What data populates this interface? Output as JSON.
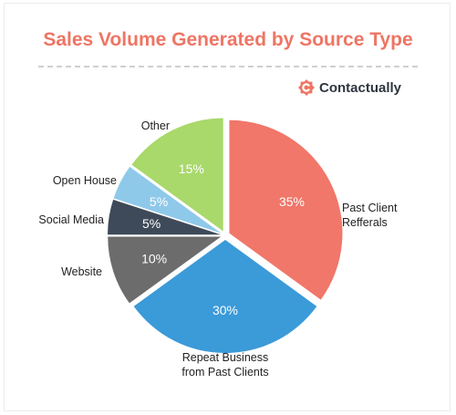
{
  "brand": {
    "name": "Contactually",
    "logo_icon": "contactually-logo-icon",
    "accent": "#ee7564"
  },
  "chart_data": {
    "type": "pie",
    "title": "Sales Volume Generated by Source Type",
    "slices": [
      {
        "label": "Past Client Refferals",
        "value": 35,
        "value_label": "35%",
        "color": "#f0776a"
      },
      {
        "label": "Repeat Business from Past Clients",
        "value": 30,
        "value_label": "30%",
        "color": "#3b9ad8"
      },
      {
        "label": "Website",
        "value": 10,
        "value_label": "10%",
        "color": "#6c6c6c"
      },
      {
        "label": "Social Media",
        "value": 5,
        "value_label": "5%",
        "color": "#3e4a59"
      },
      {
        "label": "Open House",
        "value": 5,
        "value_label": "5%",
        "color": "#8fc9ea"
      },
      {
        "label": "Other",
        "value": 15,
        "value_label": "15%",
        "color": "#a9d86b"
      }
    ]
  }
}
